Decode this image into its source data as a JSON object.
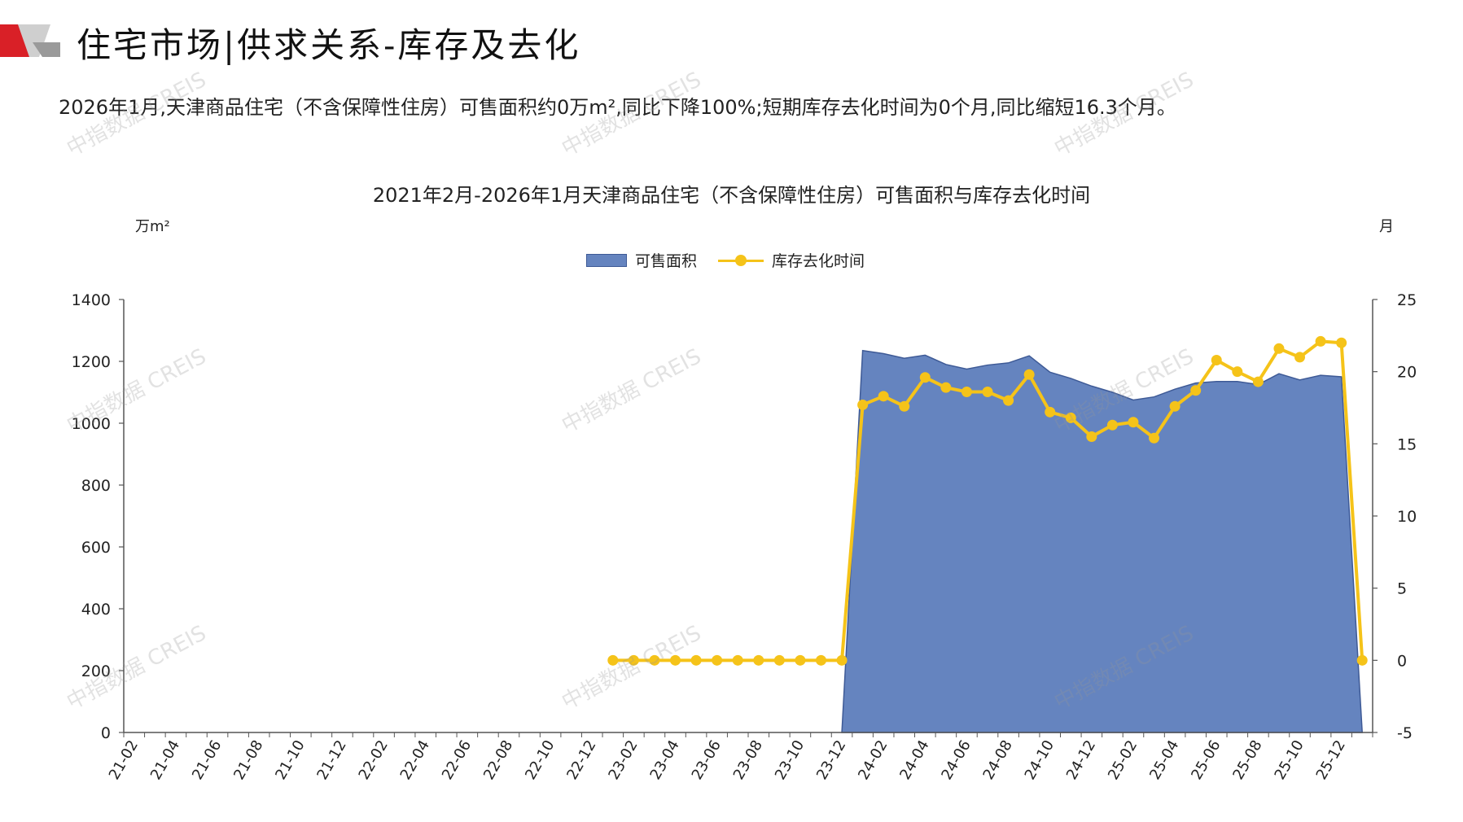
{
  "page": {
    "title": "住宅市场|供求关系-库存及去化",
    "summary": "2026年1月,天津商品住宅（不含保障性住房）可售面积约0万m²,同比下降100%;短期库存去化时间为0个月,同比缩短16.3个月。",
    "watermark": "中指数据 CREIS"
  },
  "chart_data": {
    "type": "area+line",
    "title": "2021年2月-2026年1月天津商品住宅（不含保障性住房）可售面积与库存去化时间",
    "y_left_label": "万m²",
    "y_right_label": "月",
    "y_left_lim": [
      0,
      1400
    ],
    "y_left_ticks": [
      0,
      200,
      400,
      600,
      800,
      1000,
      1200,
      1400
    ],
    "y_right_lim": [
      -5,
      25
    ],
    "y_right_ticks": [
      -5,
      0,
      5,
      10,
      15,
      20,
      25
    ],
    "legend_position": "top-center",
    "colors": {
      "area": "#6584bf",
      "area_edge": "#3e5a96",
      "line": "#f5c319"
    },
    "x": [
      "21-02",
      "21-03",
      "21-04",
      "21-05",
      "21-06",
      "21-07",
      "21-08",
      "21-09",
      "21-10",
      "21-11",
      "21-12",
      "22-01",
      "22-02",
      "22-03",
      "22-04",
      "22-05",
      "22-06",
      "22-07",
      "22-08",
      "22-09",
      "22-10",
      "22-11",
      "22-12",
      "23-01",
      "23-02",
      "23-03",
      "23-04",
      "23-05",
      "23-06",
      "23-07",
      "23-08",
      "23-09",
      "23-10",
      "23-11",
      "23-12",
      "24-01",
      "24-02",
      "24-03",
      "24-04",
      "24-05",
      "24-06",
      "24-07",
      "24-08",
      "24-09",
      "24-10",
      "24-11",
      "24-12",
      "25-01",
      "25-02",
      "25-03",
      "25-04",
      "25-05",
      "25-06",
      "25-07",
      "25-08",
      "25-09",
      "25-10",
      "25-11",
      "25-12",
      "26-01"
    ],
    "x_tick_labels": [
      "21-02",
      "21-04",
      "21-06",
      "21-08",
      "21-10",
      "21-12",
      "22-02",
      "22-04",
      "22-06",
      "22-08",
      "22-10",
      "22-12",
      "23-02",
      "23-04",
      "23-06",
      "23-08",
      "23-10",
      "23-12",
      "24-02",
      "24-04",
      "24-06",
      "24-08",
      "24-10",
      "24-12",
      "25-02",
      "25-04",
      "25-06",
      "25-08",
      "25-10",
      "25-12"
    ],
    "series": [
      {
        "name": "可售面积",
        "axis": "left",
        "type": "area",
        "values": [
          null,
          null,
          null,
          null,
          null,
          null,
          null,
          null,
          null,
          null,
          null,
          null,
          null,
          null,
          null,
          null,
          null,
          null,
          null,
          null,
          null,
          null,
          null,
          null,
          null,
          null,
          null,
          null,
          null,
          null,
          null,
          null,
          null,
          null,
          0,
          1235,
          1225,
          1210,
          1220,
          1190,
          1175,
          1188,
          1195,
          1218,
          1165,
          1145,
          1120,
          1100,
          1075,
          1085,
          1110,
          1130,
          1135,
          1135,
          1125,
          1160,
          1140,
          1155,
          1150,
          0
        ]
      },
      {
        "name": "库存去化时间",
        "axis": "right",
        "type": "line",
        "values": [
          null,
          null,
          null,
          null,
          null,
          null,
          null,
          null,
          null,
          null,
          null,
          null,
          null,
          null,
          null,
          null,
          null,
          null,
          null,
          null,
          null,
          null,
          null,
          0,
          0,
          0,
          0,
          0,
          0,
          0,
          0,
          0,
          0,
          0,
          0,
          17.7,
          18.3,
          17.6,
          19.6,
          18.9,
          18.6,
          18.6,
          18.0,
          19.8,
          17.2,
          16.8,
          15.5,
          16.3,
          16.5,
          15.4,
          17.6,
          18.7,
          20.8,
          20.0,
          19.3,
          21.6,
          21.0,
          22.1,
          22.0,
          0
        ]
      }
    ]
  }
}
